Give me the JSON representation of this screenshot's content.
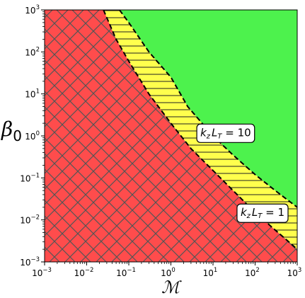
{
  "chart_data": {
    "type": "area",
    "xlabel": "ℳ",
    "ylabel_base": "β",
    "ylabel_sub": "0",
    "x_scale": "log",
    "y_scale": "log",
    "xlim": [
      0.001,
      1000
    ],
    "ylim": [
      0.001,
      1000
    ],
    "grid": false,
    "x_ticks": [
      {
        "base": "10",
        "exp": "−3",
        "value": 0.001
      },
      {
        "base": "10",
        "exp": "−2",
        "value": 0.01
      },
      {
        "base": "10",
        "exp": "−1",
        "value": 0.1
      },
      {
        "base": "10",
        "exp": "0",
        "value": 1
      },
      {
        "base": "10",
        "exp": "1",
        "value": 10
      },
      {
        "base": "10",
        "exp": "2",
        "value": 100
      },
      {
        "base": "10",
        "exp": "3",
        "value": 1000
      }
    ],
    "y_ticks": [
      {
        "base": "10",
        "exp": "−3",
        "value": 0.001
      },
      {
        "base": "10",
        "exp": "−2",
        "value": 0.01
      },
      {
        "base": "10",
        "exp": "−1",
        "value": 0.1
      },
      {
        "base": "10",
        "exp": "0",
        "value": 1
      },
      {
        "base": "10",
        "exp": "1",
        "value": 10
      },
      {
        "base": "10",
        "exp": "2",
        "value": 100
      },
      {
        "base": "10",
        "exp": "3",
        "value": 1000
      }
    ],
    "boundaries": [
      {
        "label_parts": {
          "k": "k",
          "k_sub": "z",
          "l": "L",
          "l_sub": "T",
          "rhs": " = 1"
        },
        "points": [
          [
            0.025,
            1000
          ],
          [
            0.05,
            200
          ],
          [
            0.1,
            60
          ],
          [
            0.3,
            10
          ],
          [
            1,
            2
          ],
          [
            3,
            0.5
          ],
          [
            10,
            0.15
          ],
          [
            30,
            0.05
          ],
          [
            100,
            0.015
          ],
          [
            1000,
            0.002
          ]
        ]
      },
      {
        "label_parts": {
          "k": "k",
          "k_sub": "z",
          "l": "L",
          "l_sub": "T",
          "rhs": " = 10"
        },
        "points": [
          [
            0.06,
            1000
          ],
          [
            0.1,
            500
          ],
          [
            0.3,
            100
          ],
          [
            1,
            25
          ],
          [
            2.5,
            5
          ],
          [
            10,
            1
          ],
          [
            30,
            0.35
          ],
          [
            100,
            0.12
          ],
          [
            300,
            0.05
          ],
          [
            1000,
            0.02
          ]
        ]
      }
    ],
    "regions": {
      "lower": "#ff4c4c",
      "middle": "#ffff4d",
      "upper": "#4df24d",
      "hatch_lower": "#555555",
      "hatch_middle": "#222222"
    },
    "annotations": [
      {
        "boundary": 1,
        "at": [
          20,
          1.2
        ]
      },
      {
        "boundary": 0,
        "at": [
          150,
          0.015
        ]
      }
    ]
  }
}
